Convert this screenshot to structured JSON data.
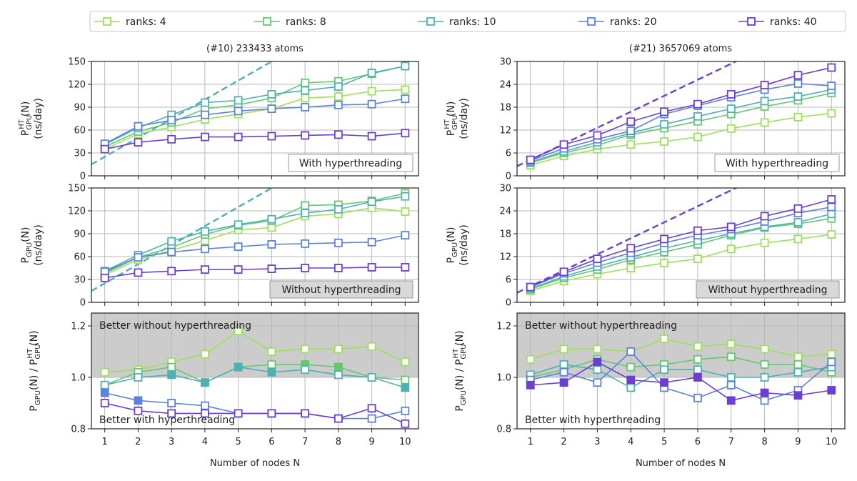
{
  "legend": [
    {
      "label": "ranks: 4",
      "color": "#9de05a"
    },
    {
      "label": "ranks: 8",
      "color": "#63c870"
    },
    {
      "label": "ranks: 10",
      "color": "#4fb0b4"
    },
    {
      "label": "ranks: 20",
      "color": "#5b82dc"
    },
    {
      "label": "ranks: 40",
      "color": "#6a3fd2"
    }
  ],
  "columns": [
    {
      "title": "(#10) 233433 atoms"
    },
    {
      "title": "(#21) 3657069 atoms"
    }
  ],
  "xlabel": "Number of nodes N",
  "rows": [
    {
      "ylabel_base": "P",
      "ylabel_sub": "GPU",
      "ylabel_sup": "HT",
      "ylabel_arg": "(N)",
      "ylabel_unit": "(ns/day)",
      "badge": "With hyperthreading"
    },
    {
      "ylabel_base": "P",
      "ylabel_sub": "GPU",
      "ylabel_sup": "",
      "ylabel_arg": "(N)",
      "ylabel_unit": "(ns/day)",
      "badge": "Without hyperthreading"
    },
    {
      "ylabel_ratio": [
        "P",
        "GPU",
        "(N) / P",
        "GPU",
        "HT",
        "(N)"
      ],
      "better_without": "Better without hyperthreading",
      "better_with": "Better with hyperthreading"
    }
  ],
  "chart_data": [
    {
      "type": "line",
      "id": "a_ht",
      "title": "(#10) 233433 atoms",
      "xlabel": "",
      "ylabel": "P_GPU^HT(N) (ns/day)",
      "x": [
        1,
        2,
        3,
        4,
        5,
        6,
        7,
        8,
        9,
        10
      ],
      "ylim": [
        0,
        150
      ],
      "yticks": [
        0,
        30,
        60,
        90,
        120,
        150
      ],
      "ideal": {
        "color": "#4fb0b4",
        "base": 25
      },
      "annotation": "With hyperthreading",
      "series": [
        {
          "name": "ranks: 4",
          "values": [
            35,
            55,
            64,
            74,
            81,
            88,
            102,
            104,
            111,
            113
          ]
        },
        {
          "name": "ranks: 8",
          "values": [
            38,
            58,
            70,
            88,
            93,
            102,
            122,
            124,
            134,
            144
          ]
        },
        {
          "name": "ranks: 10",
          "values": [
            41,
            63,
            80,
            96,
            99,
            107,
            112,
            117,
            135,
            144
          ]
        },
        {
          "name": "ranks: 20",
          "values": [
            42,
            65,
            73,
            80,
            85,
            88,
            90,
            93,
            94,
            101
          ]
        },
        {
          "name": "ranks: 40",
          "values": [
            35,
            44,
            48,
            51,
            51,
            52,
            53,
            54,
            52,
            56
          ]
        }
      ]
    },
    {
      "type": "line",
      "id": "b_ht",
      "title": "(#21) 3657069 atoms",
      "xlabel": "",
      "ylabel": "P_GPU^HT(N) (ns/day)",
      "x": [
        1,
        2,
        3,
        4,
        5,
        6,
        7,
        8,
        9,
        10
      ],
      "ylim": [
        0,
        30
      ],
      "yticks": [
        0,
        6,
        12,
        18,
        24,
        30
      ],
      "ideal": {
        "color": "#6a3fd2",
        "base": 4.2
      },
      "annotation": "With hyperthreading",
      "series": [
        {
          "name": "ranks: 4",
          "values": [
            2.8,
            5.2,
            7.0,
            8.2,
            9.0,
            10.2,
            12.4,
            14.0,
            15.4,
            16.4
          ]
        },
        {
          "name": "ranks: 8",
          "values": [
            3.4,
            6.0,
            8.0,
            10.8,
            12.5,
            14.3,
            16.2,
            18.2,
            19.8,
            21.7
          ]
        },
        {
          "name": "ranks: 10",
          "values": [
            3.6,
            6.4,
            8.8,
            11.2,
            13.5,
            15.6,
            17.6,
            19.6,
            20.8,
            22.6
          ]
        },
        {
          "name": "ranks: 20",
          "values": [
            4.0,
            7.2,
            9.6,
            11.8,
            16.2,
            18.4,
            20.6,
            22.6,
            24.2,
            23.6
          ]
        },
        {
          "name": "ranks: 40",
          "values": [
            4.2,
            8.2,
            10.6,
            14.2,
            16.8,
            18.8,
            21.4,
            23.8,
            26.4,
            28.4
          ]
        }
      ]
    },
    {
      "type": "line",
      "id": "a_noht",
      "title": "",
      "xlabel": "",
      "ylabel": "P_GPU(N) (ns/day)",
      "x": [
        1,
        2,
        3,
        4,
        5,
        6,
        7,
        8,
        9,
        10
      ],
      "ylim": [
        0,
        150
      ],
      "yticks": [
        0,
        30,
        60,
        90,
        120,
        150
      ],
      "ideal": {
        "color": "#4fb0b4",
        "base": 25
      },
      "annotation": "Without hyperthreading",
      "series": [
        {
          "name": "ranks: 4",
          "values": [
            36,
            56,
            68,
            81,
            95,
            98,
            113,
            116,
            124,
            119
          ]
        },
        {
          "name": "ranks: 8",
          "values": [
            38,
            59,
            72,
            89,
            101,
            107,
            127,
            128,
            133,
            143
          ]
        },
        {
          "name": "ranks: 10",
          "values": [
            41,
            62,
            80,
            93,
            102,
            109,
            117,
            122,
            132,
            139
          ]
        },
        {
          "name": "ranks: 20",
          "values": [
            40,
            59,
            66,
            70,
            73,
            76,
            77,
            78,
            79,
            88
          ]
        },
        {
          "name": "ranks: 40",
          "values": [
            32,
            39,
            41,
            43,
            43,
            44,
            45,
            45,
            46,
            46
          ]
        }
      ]
    },
    {
      "type": "line",
      "id": "b_noht",
      "title": "",
      "xlabel": "",
      "ylabel": "P_GPU(N) (ns/day)",
      "x": [
        1,
        2,
        3,
        4,
        5,
        6,
        7,
        8,
        9,
        10
      ],
      "ylim": [
        0,
        30
      ],
      "yticks": [
        0,
        6,
        12,
        18,
        24,
        30
      ],
      "ideal": {
        "color": "#6a3fd2",
        "base": 4.2
      },
      "annotation": "Without hyperthreading",
      "series": [
        {
          "name": "ranks: 4",
          "values": [
            3.0,
            5.6,
            7.4,
            9.0,
            10.3,
            11.4,
            14.0,
            15.6,
            16.6,
            17.8
          ]
        },
        {
          "name": "ranks: 8",
          "values": [
            3.4,
            6.4,
            8.6,
            11.2,
            13.2,
            15.2,
            17.6,
            19.6,
            20.6,
            22.0
          ]
        },
        {
          "name": "ranks: 10",
          "values": [
            3.6,
            6.8,
            9.4,
            11.8,
            14.2,
            16.2,
            18.0,
            19.8,
            21.0,
            23.2
          ]
        },
        {
          "name": "ranks: 20",
          "values": [
            4.0,
            7.6,
            10.4,
            13.0,
            15.6,
            17.6,
            19.2,
            21.2,
            23.4,
            25.0
          ]
        },
        {
          "name": "ranks: 40",
          "values": [
            4.0,
            8.0,
            11.4,
            14.2,
            16.6,
            18.8,
            19.8,
            22.6,
            24.6,
            27.0
          ]
        }
      ]
    },
    {
      "type": "line",
      "id": "a_ratio",
      "title": "",
      "xlabel": "Number of nodes N",
      "ylabel": "P_GPU(N) / P_GPU^HT(N)",
      "x": [
        1,
        2,
        3,
        4,
        5,
        6,
        7,
        8,
        9,
        10
      ],
      "ylim": [
        0.8,
        1.25
      ],
      "yticks": [
        0.8,
        1.0,
        1.2
      ],
      "shade_above": 1.0,
      "series": [
        {
          "name": "ranks: 4",
          "values": [
            1.02,
            1.03,
            1.06,
            1.09,
            1.18,
            1.1,
            1.11,
            1.11,
            1.12,
            1.06
          ],
          "filled": [
            false,
            false,
            false,
            false,
            false,
            false,
            false,
            false,
            false,
            false
          ]
        },
        {
          "name": "ranks: 8",
          "values": [
            0.97,
            1.02,
            1.04,
            0.98,
            1.04,
            1.05,
            1.05,
            1.04,
            1.0,
            0.99
          ],
          "filled": [
            false,
            false,
            false,
            true,
            true,
            false,
            true,
            true,
            true,
            false
          ]
        },
        {
          "name": "ranks: 10",
          "values": [
            0.97,
            1.0,
            1.01,
            0.98,
            1.04,
            1.02,
            1.03,
            1.01,
            1.0,
            0.96
          ],
          "filled": [
            false,
            false,
            true,
            true,
            true,
            true,
            false,
            false,
            false,
            true
          ]
        },
        {
          "name": "ranks: 20",
          "values": [
            0.94,
            0.91,
            0.9,
            0.89,
            0.86,
            0.86,
            0.86,
            0.84,
            0.84,
            0.87
          ],
          "filled": [
            true,
            true,
            false,
            false,
            false,
            false,
            false,
            false,
            false,
            false
          ]
        },
        {
          "name": "ranks: 40",
          "values": [
            0.9,
            0.87,
            0.86,
            0.86,
            0.86,
            0.86,
            0.86,
            0.84,
            0.88,
            0.82
          ],
          "filled": [
            false,
            false,
            false,
            false,
            false,
            false,
            false,
            false,
            false,
            false
          ]
        }
      ]
    },
    {
      "type": "line",
      "id": "b_ratio",
      "title": "",
      "xlabel": "Number of nodes N",
      "ylabel": "P_GPU(N) / P_GPU^HT(N)",
      "x": [
        1,
        2,
        3,
        4,
        5,
        6,
        7,
        8,
        9,
        10
      ],
      "ylim": [
        0.8,
        1.25
      ],
      "yticks": [
        0.8,
        1.0,
        1.2
      ],
      "shade_above": 1.0,
      "series": [
        {
          "name": "ranks: 4",
          "values": [
            1.07,
            1.11,
            1.11,
            1.1,
            1.15,
            1.12,
            1.13,
            1.11,
            1.08,
            1.09
          ],
          "filled": [
            false,
            false,
            false,
            false,
            false,
            false,
            false,
            false,
            false,
            false
          ]
        },
        {
          "name": "ranks: 8",
          "values": [
            1.0,
            1.03,
            1.07,
            1.04,
            1.05,
            1.07,
            1.08,
            1.05,
            1.05,
            1.02
          ],
          "filled": [
            false,
            false,
            false,
            false,
            false,
            false,
            false,
            false,
            false,
            false
          ]
        },
        {
          "name": "ranks: 10",
          "values": [
            1.01,
            1.05,
            1.03,
            0.96,
            1.03,
            1.03,
            1.0,
            1.0,
            1.02,
            1.04
          ],
          "filled": [
            false,
            false,
            false,
            false,
            false,
            false,
            false,
            false,
            false,
            false
          ]
        },
        {
          "name": "ranks: 20",
          "values": [
            0.99,
            1.02,
            0.98,
            1.1,
            0.96,
            0.92,
            0.97,
            0.91,
            0.95,
            1.06
          ],
          "filled": [
            false,
            false,
            false,
            false,
            false,
            false,
            false,
            false,
            false,
            false
          ]
        },
        {
          "name": "ranks: 40",
          "values": [
            0.97,
            0.98,
            1.06,
            0.99,
            0.98,
            1.0,
            0.91,
            0.94,
            0.93,
            0.95
          ],
          "filled": [
            true,
            true,
            true,
            true,
            true,
            true,
            true,
            true,
            true,
            true
          ]
        }
      ]
    }
  ]
}
